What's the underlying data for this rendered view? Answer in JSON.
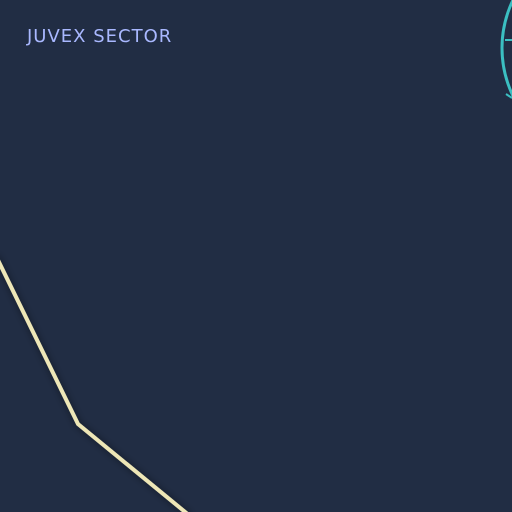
{
  "map": {
    "sector_name": "JUVEX SECTOR",
    "colors": {
      "background": "#212d44",
      "label": "#a9b8ff",
      "boundary": "#eee7b7",
      "radar": "#3bbfc2"
    },
    "icons": {
      "radar": "radar-ring-icon"
    }
  }
}
